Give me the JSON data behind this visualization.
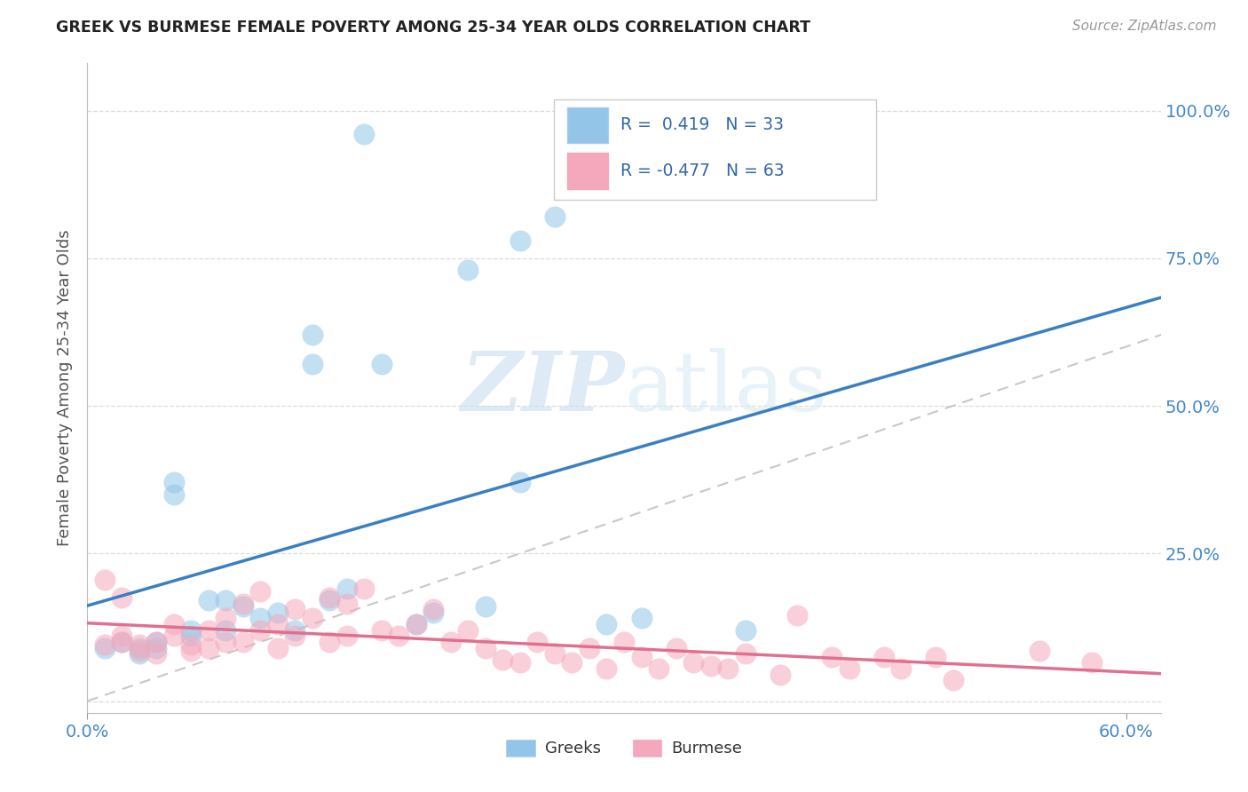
{
  "title": "GREEK VS BURMESE FEMALE POVERTY AMONG 25-34 YEAR OLDS CORRELATION CHART",
  "source": "Source: ZipAtlas.com",
  "ylabel": "Female Poverty Among 25-34 Year Olds",
  "xlim": [
    0.0,
    0.62
  ],
  "ylim": [
    -0.02,
    1.08
  ],
  "xticks": [
    0.0,
    0.6
  ],
  "xticklabels": [
    "0.0%",
    "60.0%"
  ],
  "yticks_right": [
    0.0,
    0.25,
    0.5,
    0.75,
    1.0
  ],
  "yticklabels_right": [
    "",
    "25.0%",
    "50.0%",
    "75.0%",
    "100.0%"
  ],
  "greek_color": "#92C5E8",
  "burmese_color": "#F5A8BC",
  "greek_line_color": "#3A7FC1",
  "burmese_line_color": "#E07090",
  "diagonal_color": "#C8C8C8",
  "legend_R_greek": "0.419",
  "legend_N_greek": "33",
  "legend_R_burmese": "-0.477",
  "legend_N_burmese": "63",
  "watermark_zip": "ZIP",
  "watermark_atlas": "atlas",
  "background_color": "#FFFFFF",
  "greek_scatter_x": [
    0.16,
    0.27,
    0.22,
    0.25,
    0.13,
    0.05,
    0.05,
    0.13,
    0.08,
    0.1,
    0.07,
    0.04,
    0.03,
    0.06,
    0.09,
    0.11,
    0.15,
    0.2,
    0.14,
    0.06,
    0.02,
    0.01,
    0.03,
    0.08,
    0.12,
    0.04,
    0.19,
    0.3,
    0.38,
    0.17,
    0.23,
    0.32,
    0.25
  ],
  "greek_scatter_y": [
    0.96,
    0.82,
    0.73,
    0.78,
    0.62,
    0.37,
    0.35,
    0.57,
    0.12,
    0.14,
    0.17,
    0.1,
    0.08,
    0.11,
    0.16,
    0.15,
    0.19,
    0.15,
    0.17,
    0.12,
    0.1,
    0.09,
    0.09,
    0.17,
    0.12,
    0.09,
    0.13,
    0.13,
    0.12,
    0.57,
    0.16,
    0.14,
    0.37
  ],
  "burmese_scatter_x": [
    0.01,
    0.02,
    0.02,
    0.03,
    0.03,
    0.04,
    0.04,
    0.05,
    0.05,
    0.06,
    0.06,
    0.07,
    0.07,
    0.08,
    0.08,
    0.09,
    0.09,
    0.1,
    0.1,
    0.11,
    0.11,
    0.12,
    0.12,
    0.13,
    0.14,
    0.14,
    0.15,
    0.15,
    0.16,
    0.17,
    0.18,
    0.19,
    0.2,
    0.21,
    0.22,
    0.23,
    0.24,
    0.25,
    0.26,
    0.27,
    0.28,
    0.29,
    0.3,
    0.31,
    0.32,
    0.33,
    0.34,
    0.35,
    0.36,
    0.37,
    0.38,
    0.4,
    0.41,
    0.43,
    0.44,
    0.46,
    0.47,
    0.49,
    0.5,
    0.55,
    0.58,
    0.01,
    0.02
  ],
  "burmese_scatter_y": [
    0.095,
    0.11,
    0.1,
    0.095,
    0.085,
    0.1,
    0.08,
    0.13,
    0.11,
    0.095,
    0.085,
    0.12,
    0.09,
    0.14,
    0.1,
    0.165,
    0.1,
    0.185,
    0.12,
    0.13,
    0.09,
    0.155,
    0.11,
    0.14,
    0.175,
    0.1,
    0.165,
    0.11,
    0.19,
    0.12,
    0.11,
    0.13,
    0.155,
    0.1,
    0.12,
    0.09,
    0.07,
    0.065,
    0.1,
    0.08,
    0.065,
    0.09,
    0.055,
    0.1,
    0.075,
    0.055,
    0.09,
    0.065,
    0.06,
    0.055,
    0.08,
    0.045,
    0.145,
    0.075,
    0.055,
    0.075,
    0.055,
    0.075,
    0.035,
    0.085,
    0.065,
    0.205,
    0.175
  ]
}
